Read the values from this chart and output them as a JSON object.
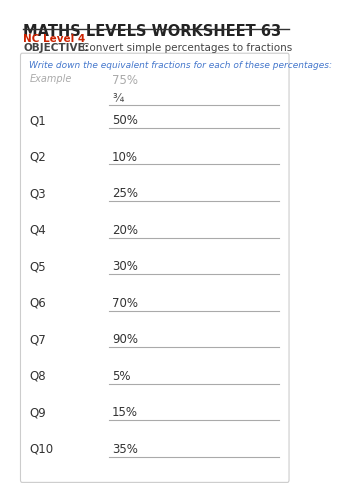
{
  "title": "MATHS LEVELS WORKSHEET 63",
  "nc_level": "NC Level 4",
  "objective_label": "OBJECTIVE:",
  "objective_text": "Convert simple percentages to fractions",
  "instruction": "Write down the equivalent fractions for each of these percentages:",
  "example_label": "Example",
  "example_value": "75%",
  "example_fraction": "¾",
  "questions": [
    {
      "label": "Q1",
      "value": "50%"
    },
    {
      "label": "Q2",
      "value": "10%"
    },
    {
      "label": "Q3",
      "value": "25%"
    },
    {
      "label": "Q4",
      "value": "20%"
    },
    {
      "label": "Q5",
      "value": "30%"
    },
    {
      "label": "Q6",
      "value": "70%"
    },
    {
      "label": "Q7",
      "value": "90%"
    },
    {
      "label": "Q8",
      "value": "5%"
    },
    {
      "label": "Q9",
      "value": "15%"
    },
    {
      "label": "Q10",
      "value": "35%"
    }
  ],
  "bg_color": "#ffffff",
  "title_color": "#222222",
  "title_line_color": "#333333",
  "nc_color": "#cc2200",
  "objective_color": "#444444",
  "instruction_color": "#4477cc",
  "example_label_color": "#aaaaaa",
  "example_value_color": "#aaaaaa",
  "example_fraction_color": "#555555",
  "question_label_color": "#333333",
  "question_value_color": "#333333",
  "line_color": "#aaaaaa",
  "box_edge_color": "#cccccc",
  "box_bg_color": "#ffffff"
}
